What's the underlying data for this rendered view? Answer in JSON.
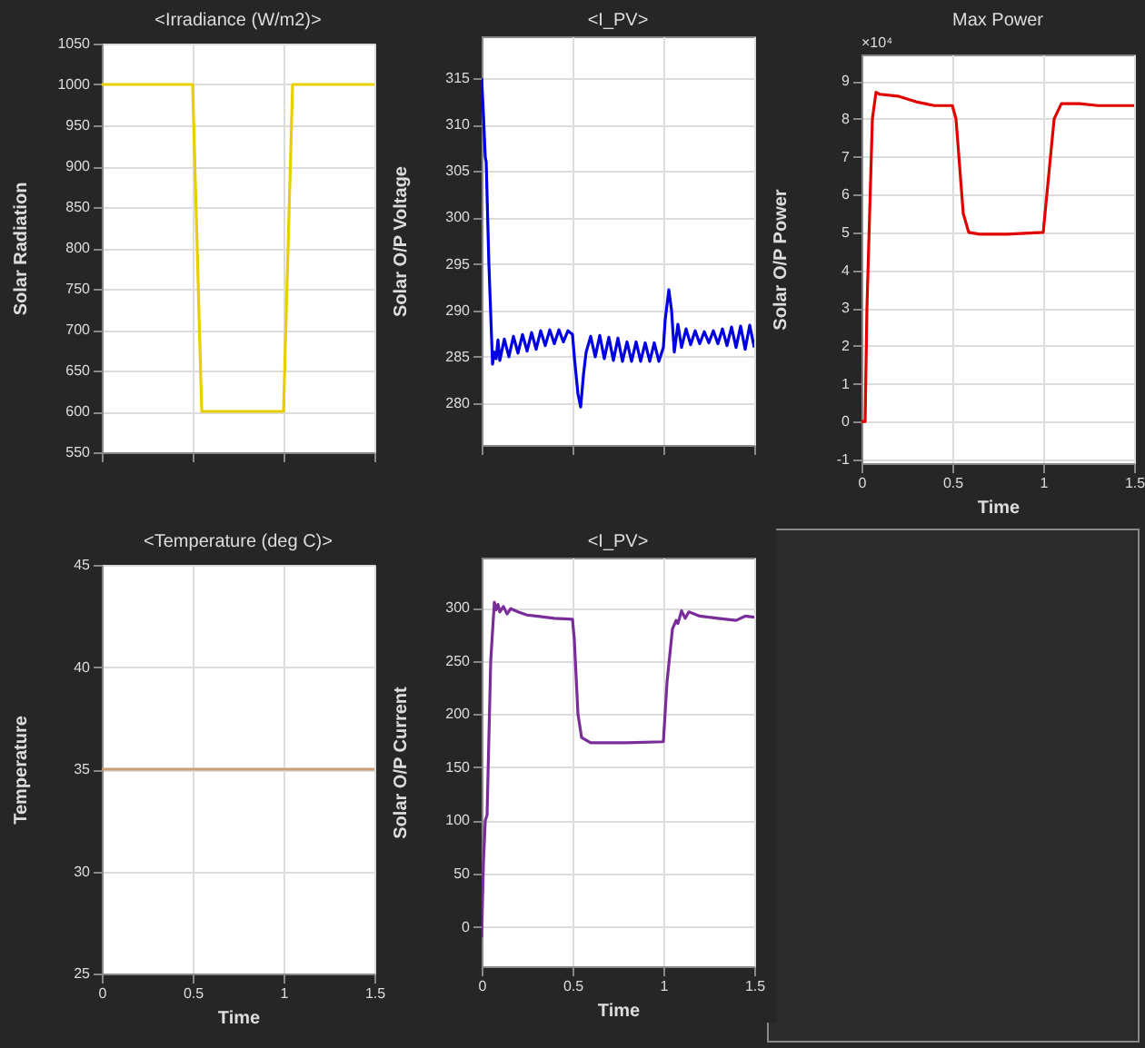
{
  "chart_data": [
    {
      "type": "line",
      "title": "<Irradiance (W/m2)>",
      "ylabel": "Solar Radiation",
      "x": [
        0,
        0.5,
        0.55,
        1.0,
        1.05,
        1.5
      ],
      "series": [
        {
          "color": "#e8d000",
          "values": [
            1000,
            1000,
            600,
            600,
            1000,
            1000
          ]
        }
      ],
      "xlim": [
        0,
        1.5
      ],
      "xticks": [
        0,
        0.5,
        1,
        1.5
      ],
      "ylim": [
        550,
        1050
      ],
      "yticks": [
        550,
        600,
        650,
        700,
        750,
        800,
        850,
        900,
        950,
        1000,
        1050
      ],
      "grid": true,
      "tick_labels": "y"
    },
    {
      "type": "line",
      "title": "<I_PV>",
      "ylabel": "Solar O/P Voltage",
      "x": [
        0,
        0.01,
        0.02,
        0.025,
        0.04,
        0.06,
        0.07,
        0.08,
        0.09,
        0.1,
        0.125,
        0.15,
        0.175,
        0.2,
        0.225,
        0.25,
        0.275,
        0.3,
        0.325,
        0.35,
        0.375,
        0.4,
        0.425,
        0.45,
        0.475,
        0.5,
        0.51,
        0.53,
        0.545,
        0.56,
        0.575,
        0.6,
        0.625,
        0.65,
        0.675,
        0.7,
        0.725,
        0.75,
        0.775,
        0.8,
        0.825,
        0.85,
        0.875,
        0.9,
        0.925,
        0.95,
        0.975,
        1.0,
        1.01,
        1.03,
        1.045,
        1.06,
        1.08,
        1.1,
        1.125,
        1.15,
        1.175,
        1.2,
        1.225,
        1.25,
        1.275,
        1.3,
        1.325,
        1.35,
        1.375,
        1.4,
        1.425,
        1.45,
        1.475,
        1.5
      ],
      "series": [
        {
          "color": "#0000e0",
          "values": [
            315,
            311,
            306.5,
            306,
            295,
            284.2,
            285.5,
            284.8,
            286.8,
            284.6,
            286.9,
            285,
            287.2,
            285.4,
            287.4,
            285.6,
            287.6,
            285.8,
            287.8,
            286.2,
            287.9,
            286.4,
            287.9,
            286.6,
            287.8,
            287.4,
            285,
            281,
            279.6,
            283,
            285.5,
            287.2,
            285,
            287.3,
            284.8,
            287.1,
            284.6,
            287,
            284.5,
            286.6,
            284.5,
            286.6,
            284.5,
            286.5,
            284.5,
            286.5,
            284.5,
            286,
            289,
            292.2,
            290,
            285.5,
            288.5,
            286,
            288,
            286.3,
            287.8,
            286.4,
            287.7,
            286.5,
            287.8,
            286.4,
            288,
            286.2,
            288.2,
            286,
            288.3,
            285.8,
            288.4,
            286
          ]
        }
      ],
      "xlim": [
        0,
        1.5
      ],
      "xticks": [
        0,
        0.5,
        1,
        1.5
      ],
      "ylim": [
        275.5,
        319.5
      ],
      "yticks": [
        280,
        285,
        290,
        295,
        300,
        305,
        310,
        315
      ],
      "grid": true,
      "tick_labels": "y"
    },
    {
      "type": "line",
      "title": "Max Power",
      "ylabel": "Solar O/P Power",
      "xlabel": "Time",
      "annotations": [
        "×10⁴"
      ],
      "x": [
        0,
        0.02,
        0.03,
        0.06,
        0.08,
        0.1,
        0.2,
        0.3,
        0.4,
        0.5,
        0.52,
        0.56,
        0.59,
        0.65,
        0.8,
        1.0,
        1.02,
        1.06,
        1.1,
        1.2,
        1.3,
        1.5
      ],
      "series": [
        {
          "color": "#e00000",
          "values": [
            0,
            0,
            3,
            8.0,
            8.7,
            8.65,
            8.6,
            8.45,
            8.35,
            8.35,
            8.0,
            5.5,
            5.0,
            4.95,
            4.95,
            5.0,
            6.0,
            8.0,
            8.4,
            8.4,
            8.35,
            8.35
          ]
        }
      ],
      "xlim": [
        0,
        1.5
      ],
      "xticks": [
        0,
        0.5,
        1,
        1.5
      ],
      "ylim": [
        -1.1,
        9.7
      ],
      "yticks": [
        -1,
        0,
        1,
        2,
        3,
        4,
        5,
        6,
        7,
        8,
        9
      ],
      "grid": true
    },
    {
      "type": "line",
      "title": "<Temperature (deg C)>",
      "ylabel": "Temperature",
      "xlabel": "Time",
      "x": [
        0,
        1.5
      ],
      "series": [
        {
          "color": "#c8a078",
          "values": [
            35,
            35
          ]
        }
      ],
      "xlim": [
        0,
        1.5
      ],
      "xticks": [
        0,
        0.5,
        1,
        1.5
      ],
      "ylim": [
        25,
        45
      ],
      "yticks": [
        25,
        30,
        35,
        40,
        45
      ],
      "grid": true
    },
    {
      "type": "line",
      "title": "<I_PV>",
      "ylabel": "Solar O/P Current",
      "xlabel": "Time",
      "x": [
        0,
        0.01,
        0.02,
        0.03,
        0.05,
        0.07,
        0.08,
        0.09,
        0.1,
        0.12,
        0.14,
        0.16,
        0.2,
        0.25,
        0.3,
        0.35,
        0.4,
        0.5,
        0.51,
        0.53,
        0.55,
        0.6,
        0.8,
        1.0,
        1.02,
        1.05,
        1.07,
        1.08,
        1.1,
        1.12,
        1.14,
        1.2,
        1.3,
        1.4,
        1.45,
        1.5
      ],
      "series": [
        {
          "color": "#7a2d9a",
          "values": [
            -10,
            60,
            100,
            105,
            250,
            305,
            298,
            303,
            296,
            301,
            294,
            299,
            296,
            293,
            292,
            291,
            290,
            289,
            270,
            200,
            178,
            173,
            173,
            174,
            230,
            280,
            288,
            285,
            297,
            290,
            296,
            292,
            290,
            288,
            292,
            291
          ]
        }
      ],
      "xlim": [
        0,
        1.5
      ],
      "xticks": [
        0,
        0.5,
        1,
        1.5
      ],
      "ylim": [
        -37,
        347
      ],
      "yticks": [
        0,
        50,
        100,
        150,
        200,
        250,
        300
      ],
      "grid": true
    }
  ]
}
